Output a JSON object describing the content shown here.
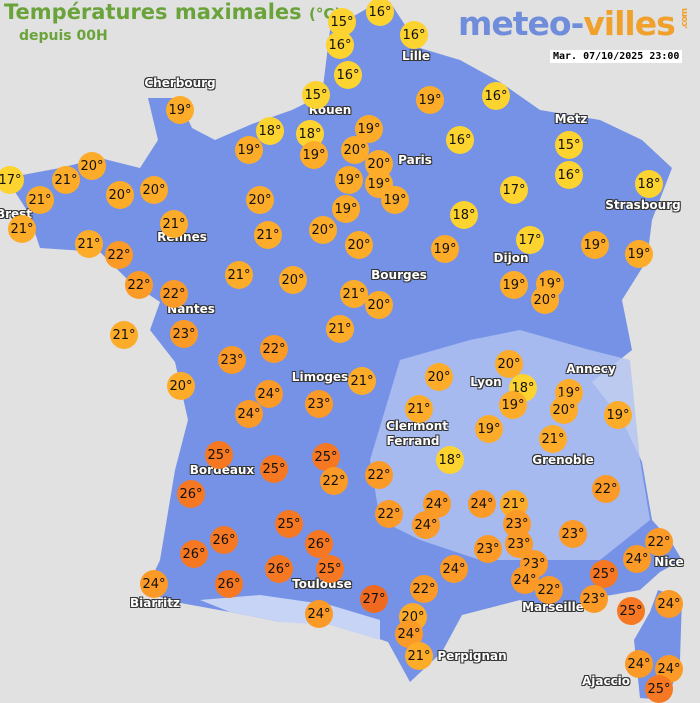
{
  "header": {
    "title": "Températures maximales",
    "unit": "(°C)",
    "subtitle": "depuis 00H",
    "logo": {
      "part1": "meteo-",
      "part2": "villes",
      "suffix": ".com"
    },
    "datetime": "Mar. 07/10/2025 23:00"
  },
  "colors": {
    "background": "#e1e1e1",
    "land": "#7592e6",
    "le18": "#fdd330",
    "19to21": "#fdac2a",
    "22to24": "#fb9a26",
    "25to26": "#f67822",
    "ge27": "#ef6a1e"
  },
  "cities": [
    "Cherbourg",
    "Rouen",
    "Lille",
    "Paris",
    "Metz",
    "Strasbourg",
    "Brest",
    "Rennes",
    "Dijon",
    "Nantes",
    "Bourges",
    "Limoges",
    "Annecy",
    "Lyon",
    "Clermont",
    "Ferrand",
    "Grenoble",
    "Bordeaux",
    "Nice",
    "Toulouse",
    "Marseille",
    "Biarritz",
    "Perpignan",
    "Ajaccio"
  ],
  "temperatures": [
    15,
    16,
    16,
    16,
    16,
    15,
    19,
    16,
    19,
    18,
    18,
    19,
    19,
    19,
    20,
    20,
    16,
    15,
    16,
    17,
    21,
    21,
    20,
    20,
    20,
    19,
    19,
    19,
    20,
    17,
    18,
    21,
    19,
    21,
    21,
    22,
    21,
    20,
    20,
    18,
    17,
    19,
    19,
    19,
    22,
    22,
    21,
    20,
    21,
    20,
    19,
    19,
    20,
    21,
    23,
    21,
    23,
    22,
    20,
    24,
    24,
    23,
    21,
    20,
    20,
    18,
    19,
    19,
    20,
    19,
    21,
    19,
    21,
    18,
    25,
    25,
    25,
    22,
    22,
    26,
    22,
    24,
    24,
    24,
    21,
    23,
    22,
    25,
    26,
    26,
    26,
    25,
    23,
    23,
    23,
    23,
    24,
    22,
    25,
    23,
    24,
    22,
    24,
    26,
    26,
    27,
    22,
    24,
    20,
    24,
    21,
    24,
    25,
    24,
    24,
    24,
    25
  ],
  "degree_symbol": "°"
}
